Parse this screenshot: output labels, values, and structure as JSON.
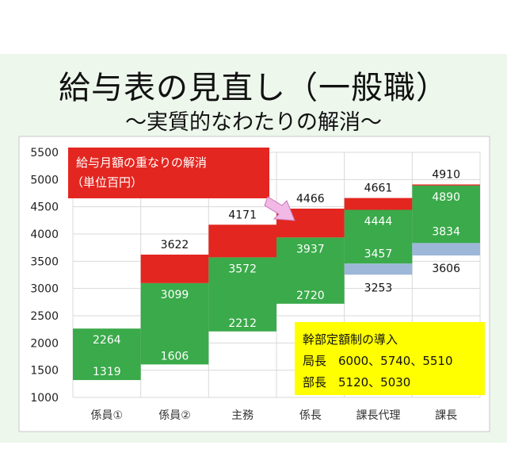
{
  "title": "給与表の見直し（一般職）",
  "subtitle": "〜実質的なわたりの解消〜",
  "colors": {
    "green": "#3aaa4a",
    "red": "#e32620",
    "blue": "#9db7d8",
    "callout_red": "#e32620",
    "callout_yellow": "#ffff00",
    "arrow_pink": "#f2b8e6"
  },
  "chart_data": {
    "type": "bar",
    "subtype": "floating-range",
    "categories": [
      "係員①",
      "係員②",
      "主務",
      "係長",
      "課長代理",
      "課長"
    ],
    "ylim": [
      1000,
      5500
    ],
    "yticks": [
      1000,
      1500,
      2000,
      2500,
      3000,
      3500,
      4000,
      4500,
      5000,
      5500
    ],
    "grid": true,
    "bands": [
      {
        "color": "green",
        "ranges": [
          [
            1319,
            2264
          ],
          [
            1606,
            3099
          ],
          [
            2212,
            3572
          ],
          [
            2720,
            3937
          ],
          [
            3457,
            4444
          ],
          [
            3834,
            4890
          ]
        ]
      },
      {
        "color": "red",
        "ranges": [
          null,
          [
            3099,
            3622
          ],
          [
            3572,
            4171
          ],
          [
            3937,
            4466
          ],
          [
            4444,
            4661
          ],
          [
            4890,
            4910
          ]
        ]
      },
      {
        "color": "blue",
        "ranges": [
          null,
          null,
          null,
          null,
          [
            3253,
            3457
          ],
          [
            3606,
            3834
          ]
        ]
      }
    ],
    "labels": [
      {
        "cat": 0,
        "value": 2264,
        "text": "2264",
        "color": "white"
      },
      {
        "cat": 0,
        "value": 1319,
        "text": "1319",
        "color": "white"
      },
      {
        "cat": 1,
        "value": 3622,
        "text": "3622",
        "color": "black"
      },
      {
        "cat": 1,
        "value": 3099,
        "text": "3099",
        "color": "white"
      },
      {
        "cat": 1,
        "value": 1606,
        "text": "1606",
        "color": "white"
      },
      {
        "cat": 2,
        "value": 4171,
        "text": "4171",
        "color": "black"
      },
      {
        "cat": 2,
        "value": 3572,
        "text": "3572",
        "color": "white"
      },
      {
        "cat": 2,
        "value": 2212,
        "text": "2212",
        "color": "white"
      },
      {
        "cat": 3,
        "value": 4466,
        "text": "4466",
        "color": "black"
      },
      {
        "cat": 3,
        "value": 3937,
        "text": "3937",
        "color": "white"
      },
      {
        "cat": 3,
        "value": 2720,
        "text": "2720",
        "color": "white"
      },
      {
        "cat": 4,
        "value": 4661,
        "text": "4661",
        "color": "black"
      },
      {
        "cat": 4,
        "value": 4444,
        "text": "4444",
        "color": "white"
      },
      {
        "cat": 4,
        "value": 3457,
        "text": "3457",
        "color": "white"
      },
      {
        "cat": 4,
        "value": 3253,
        "text": "3253",
        "color": "black"
      },
      {
        "cat": 5,
        "value": 4910,
        "text": "4910",
        "color": "black"
      },
      {
        "cat": 5,
        "value": 4890,
        "text": "4890",
        "color": "white"
      },
      {
        "cat": 5,
        "value": 3834,
        "text": "3834",
        "color": "white"
      },
      {
        "cat": 5,
        "value": 3606,
        "text": "3606",
        "color": "black"
      }
    ],
    "callouts": [
      {
        "lines": [
          "給与月額の重なりの解消",
          "（単位百円）"
        ],
        "style": "red-box"
      },
      {
        "lines": [
          "幹部定額制の導入",
          "局長　6000、5740、5510",
          "部長　5120、5030"
        ],
        "style": "yellow-box"
      }
    ]
  }
}
